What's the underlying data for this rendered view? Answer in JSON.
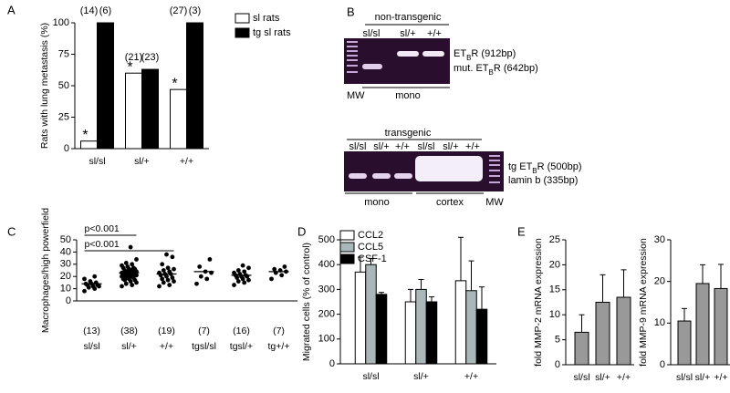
{
  "chart_data": [
    {
      "type": "bar",
      "panel_label": "A",
      "ylabel": "Rats with lung metastasis (%)",
      "categories": [
        "sl/sl",
        "sl/+",
        "+/+"
      ],
      "series": [
        {
          "name": "sl rats",
          "color": "#ffffff",
          "values": [
            6,
            60,
            47
          ],
          "n_labels": [
            "(14)",
            "(21)",
            "(27)"
          ],
          "significance": [
            "*",
            "*",
            "*"
          ]
        },
        {
          "name": "tg sl rats",
          "color": "#000000",
          "values": [
            100,
            63,
            100
          ],
          "n_labels": [
            "(6)",
            "(23)",
            "(3)"
          ]
        }
      ],
      "ylim": [
        0,
        100
      ],
      "yticks": [
        0,
        25,
        50,
        75,
        100
      ],
      "legend": "upper right"
    },
    {
      "type": "dot",
      "panel_label": "C",
      "ylabel": "Macrophages/high powerfield",
      "categories": [
        "sl/sl",
        "sl/+",
        "+/+",
        "tgsl/sl",
        "tgsl/+",
        "tg+/+"
      ],
      "points": [
        [
          8,
          10,
          11,
          12,
          12,
          13,
          13,
          14,
          14,
          15,
          16,
          18,
          20
        ],
        [
          12,
          13,
          14,
          15,
          16,
          17,
          17,
          18,
          18,
          19,
          19,
          20,
          20,
          20,
          21,
          21,
          21,
          22,
          22,
          22,
          23,
          23,
          23,
          24,
          24,
          24,
          25,
          25,
          26,
          26,
          27,
          27,
          28,
          29,
          30,
          31,
          34,
          44
        ],
        [
          12,
          13,
          15,
          16,
          17,
          18,
          19,
          20,
          21,
          22,
          22,
          23,
          24,
          25,
          26,
          27,
          30,
          36,
          38
        ],
        [
          14,
          18,
          20,
          23,
          24,
          28,
          34
        ],
        [
          13,
          15,
          16,
          17,
          18,
          19,
          20,
          20,
          21,
          21,
          22,
          23,
          24,
          25,
          27,
          29
        ],
        [
          18,
          21,
          23,
          24,
          25,
          26,
          28
        ]
      ],
      "means": [
        14,
        23,
        22,
        24,
        21,
        24
      ],
      "n_labels": [
        "(13)",
        "(38)",
        "(19)",
        "(7)",
        "(16)",
        "(7)"
      ],
      "color": "#000000",
      "annotations": [
        {
          "text": "p<0.001",
          "from": 0,
          "to": 1
        },
        {
          "text": "p<0.001",
          "from": 0,
          "to": 2
        }
      ],
      "ylim": [
        0,
        50
      ],
      "yticks": [
        0,
        10,
        20,
        30,
        40,
        50
      ]
    },
    {
      "type": "bar",
      "panel_label": "D",
      "ylabel": "Migrated cells (% of control)",
      "categories": [
        "sl/sl",
        "sl/+",
        "+/+"
      ],
      "series": [
        {
          "name": "CCL2",
          "color": "#ffffff",
          "values": [
            370,
            250,
            335
          ],
          "errors": [
            60,
            50,
            175
          ]
        },
        {
          "name": "CCL5",
          "color": "#a9b7b9",
          "values": [
            400,
            300,
            295
          ],
          "errors": [
            25,
            40,
            120
          ]
        },
        {
          "name": "CSF-1",
          "color": "#000000",
          "values": [
            280,
            250,
            220
          ],
          "errors": [
            8,
            20,
            90
          ]
        }
      ],
      "ylim": [
        0,
        500
      ],
      "yticks": [
        0,
        100,
        200,
        300,
        400,
        500
      ],
      "legend": "upper left"
    },
    {
      "type": "bar",
      "panel_label": "E",
      "ylabel": "fold MMP-2 mRNA expression",
      "categories": [
        "sl/sl",
        "sl/+",
        "+/+"
      ],
      "values": [
        6.5,
        12.5,
        13.5
      ],
      "errors": [
        3.5,
        5.5,
        5.5
      ],
      "color": "#999999",
      "ylim": [
        0,
        25
      ],
      "yticks": [
        0,
        5,
        10,
        15,
        20,
        25
      ]
    },
    {
      "type": "bar",
      "ylabel": "fold MMP-9 mRNA expression",
      "categories": [
        "sl/sl",
        "sl/+",
        "+/+"
      ],
      "values": [
        10.5,
        19.5,
        18.3
      ],
      "errors": [
        3,
        4.5,
        5.8
      ],
      "color": "#999999",
      "ylim": [
        0,
        30
      ],
      "yticks": [
        0,
        10,
        20,
        30
      ]
    }
  ],
  "gel": {
    "panel_label": "B",
    "top": {
      "title": "non-transgenic",
      "lanes": [
        "sl/sl",
        "sl/+",
        "+/+"
      ],
      "band_labels": [
        {
          "text": "ET",
          "sub": "B",
          "rest": "R (912bp)"
        },
        {
          "text": "mut. ET",
          "sub": "B",
          "rest": "R (642bp)"
        }
      ],
      "marker": "MW",
      "groups": [
        "mono"
      ]
    },
    "bottom": {
      "title": "transgenic",
      "lanes": [
        "sl/sl",
        "sl/+",
        "+/+",
        "sl/sl",
        "sl/+",
        "+/+"
      ],
      "band_labels": [
        {
          "text": "tg ET",
          "sub": "B",
          "rest": "R (500bp)"
        },
        {
          "text": "lamin b (335bp)"
        }
      ],
      "marker": "MW",
      "groups": [
        "mono",
        "cortex"
      ]
    }
  }
}
